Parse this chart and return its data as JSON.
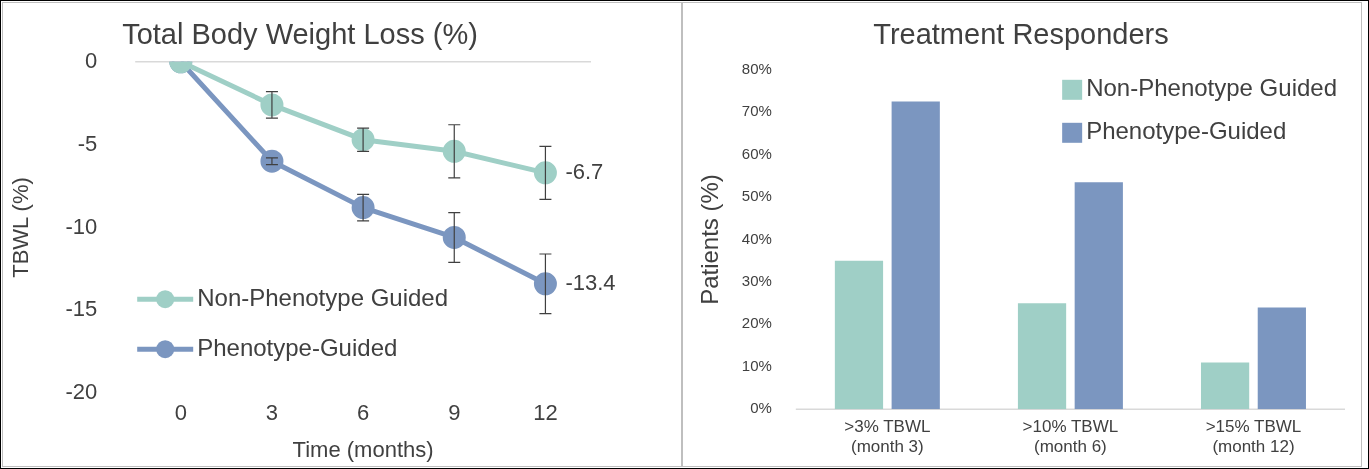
{
  "chart_data": [
    {
      "type": "line",
      "title": "Total Body Weight Loss (%)",
      "xlabel": "Time (months)",
      "ylabel": "TBWL (%)",
      "categories": [
        "0",
        "3",
        "6",
        "9",
        "12"
      ],
      "series": [
        {
          "name": "Non-Phenotype Guided",
          "color": "#9fcfc6",
          "values": [
            0,
            -2.6,
            -4.7,
            -5.4,
            -6.7
          ],
          "errors": [
            null,
            0.8,
            0.7,
            1.6,
            1.6
          ],
          "value_labels": [
            null,
            null,
            null,
            null,
            "-6.7"
          ]
        },
        {
          "name": "Phenotype-Guided",
          "color": "#7b96c0",
          "values": [
            0,
            -6.0,
            -8.8,
            -10.6,
            -13.4
          ],
          "errors": [
            null,
            0.2,
            0.8,
            1.5,
            1.8
          ],
          "value_labels": [
            null,
            null,
            null,
            null,
            "-13.4"
          ]
        }
      ],
      "ylim": [
        -20,
        0
      ],
      "yticks": [
        -20,
        -15,
        -10,
        -5,
        0
      ],
      "marker": "circle",
      "legend": "bottom left",
      "grid": false
    },
    {
      "type": "bar",
      "title": "Treatment Responders",
      "ylabel": "Patients (%)",
      "categories": [
        ">3% TBWL\n(month 3)",
        ">10% TBWL\n(month 6)",
        ">15% TBWL\n(month 12)"
      ],
      "series": [
        {
          "name": "Non-Phenotype Guided",
          "color": "#9fcfc6",
          "values": [
            35,
            25,
            11
          ]
        },
        {
          "name": "Phenotype-Guided",
          "color": "#7b96c0",
          "values": [
            72.5,
            53.5,
            24
          ]
        }
      ],
      "ylim": [
        0,
        80
      ],
      "yticks": [
        {
          "value": 0,
          "label": "0%"
        },
        {
          "value": 10,
          "label": "10%"
        },
        {
          "value": 20,
          "label": "20%"
        },
        {
          "value": 30,
          "label": "30%"
        },
        {
          "value": 40,
          "label": "40%"
        },
        {
          "value": 50,
          "label": "50%"
        },
        {
          "value": 60,
          "label": "60%"
        },
        {
          "value": 70,
          "label": "70%"
        },
        {
          "value": 80,
          "label": "80%"
        }
      ],
      "legend": "top right",
      "grid": false
    }
  ]
}
